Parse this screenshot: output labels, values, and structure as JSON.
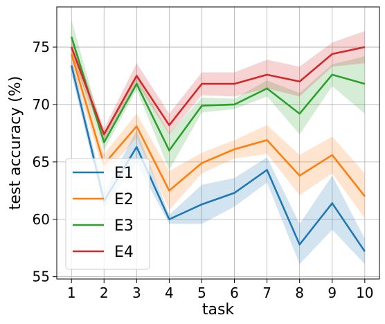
{
  "chart_data": {
    "type": "line",
    "xlabel": "task",
    "ylabel": "test accuracy (%)",
    "x": [
      1,
      2,
      3,
      4,
      5,
      6,
      7,
      8,
      9,
      10
    ],
    "xlim": [
      0.55,
      10.45
    ],
    "ylim": [
      54.8,
      78.5
    ],
    "yticks": [
      55,
      60,
      65,
      70,
      75
    ],
    "grid": true,
    "legend_position": "lower-left",
    "series": [
      {
        "name": "E1",
        "color": "#1f77b4",
        "values": [
          73.4,
          61.6,
          66.3,
          60.0,
          61.3,
          62.3,
          64.3,
          57.8,
          61.4,
          57.2
        ],
        "lower": [
          72.6,
          61.0,
          64.9,
          59.6,
          59.6,
          61.1,
          63.2,
          56.1,
          59.1,
          56.1
        ],
        "upper": [
          74.2,
          62.3,
          67.8,
          60.4,
          63.0,
          63.6,
          65.4,
          59.6,
          63.8,
          58.3
        ]
      },
      {
        "name": "E2",
        "color": "#ff7f0e",
        "values": [
          74.4,
          64.8,
          68.1,
          62.5,
          64.9,
          66.1,
          66.9,
          63.8,
          65.6,
          62.0
        ],
        "lower": [
          73.5,
          63.9,
          67.1,
          60.8,
          64.0,
          65.3,
          65.7,
          62.1,
          64.0,
          60.1
        ],
        "upper": [
          75.3,
          65.7,
          69.2,
          64.2,
          65.8,
          66.9,
          68.2,
          65.6,
          67.2,
          64.0
        ]
      },
      {
        "name": "E3",
        "color": "#2ca02c",
        "values": [
          75.9,
          66.7,
          71.8,
          66.0,
          69.9,
          70.0,
          71.4,
          69.2,
          72.6,
          71.8
        ],
        "lower": [
          74.6,
          66.0,
          71.3,
          64.3,
          69.3,
          69.6,
          70.7,
          67.4,
          71.6,
          69.2
        ],
        "upper": [
          77.4,
          67.3,
          72.4,
          67.5,
          70.6,
          70.5,
          72.1,
          71.0,
          73.5,
          74.2
        ]
      },
      {
        "name": "E4",
        "color": "#d62728",
        "values": [
          75.0,
          67.4,
          72.5,
          68.2,
          71.8,
          71.8,
          72.6,
          72.0,
          74.4,
          75.0
        ],
        "lower": [
          74.2,
          66.9,
          71.9,
          67.4,
          70.8,
          70.7,
          71.4,
          70.7,
          73.3,
          73.6
        ],
        "upper": [
          75.8,
          67.9,
          73.6,
          69.2,
          72.8,
          72.8,
          73.9,
          73.3,
          75.4,
          76.4
        ]
      }
    ]
  }
}
